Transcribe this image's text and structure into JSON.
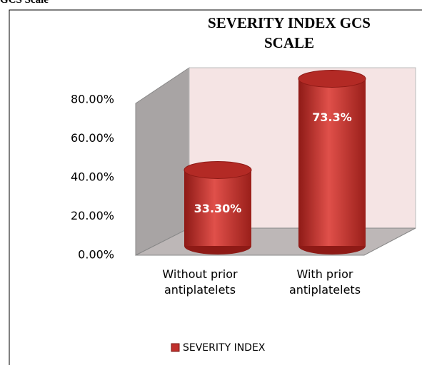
{
  "heading": "GCS Scale",
  "chart_data": {
    "type": "bar3d",
    "title": "SEVERITY INDEX GCS SCALE",
    "categories": [
      "Without prior antiplatelets",
      "With prior antiplatelets"
    ],
    "series": [
      {
        "name": "SEVERITY INDEX",
        "color": "#c0302c",
        "values": [
          33.3,
          73.3
        ],
        "value_labels": [
          "33.30%",
          "73.3%"
        ]
      }
    ],
    "ylim": [
      0,
      80
    ],
    "yticks": [
      {
        "value": 0,
        "label": "0.00%"
      },
      {
        "value": 20,
        "label": "20.00%"
      },
      {
        "value": 40,
        "label": "40.00%"
      },
      {
        "value": 60,
        "label": "60.00%"
      },
      {
        "value": 80,
        "label": "80.00%"
      }
    ],
    "legend": "bottom"
  }
}
